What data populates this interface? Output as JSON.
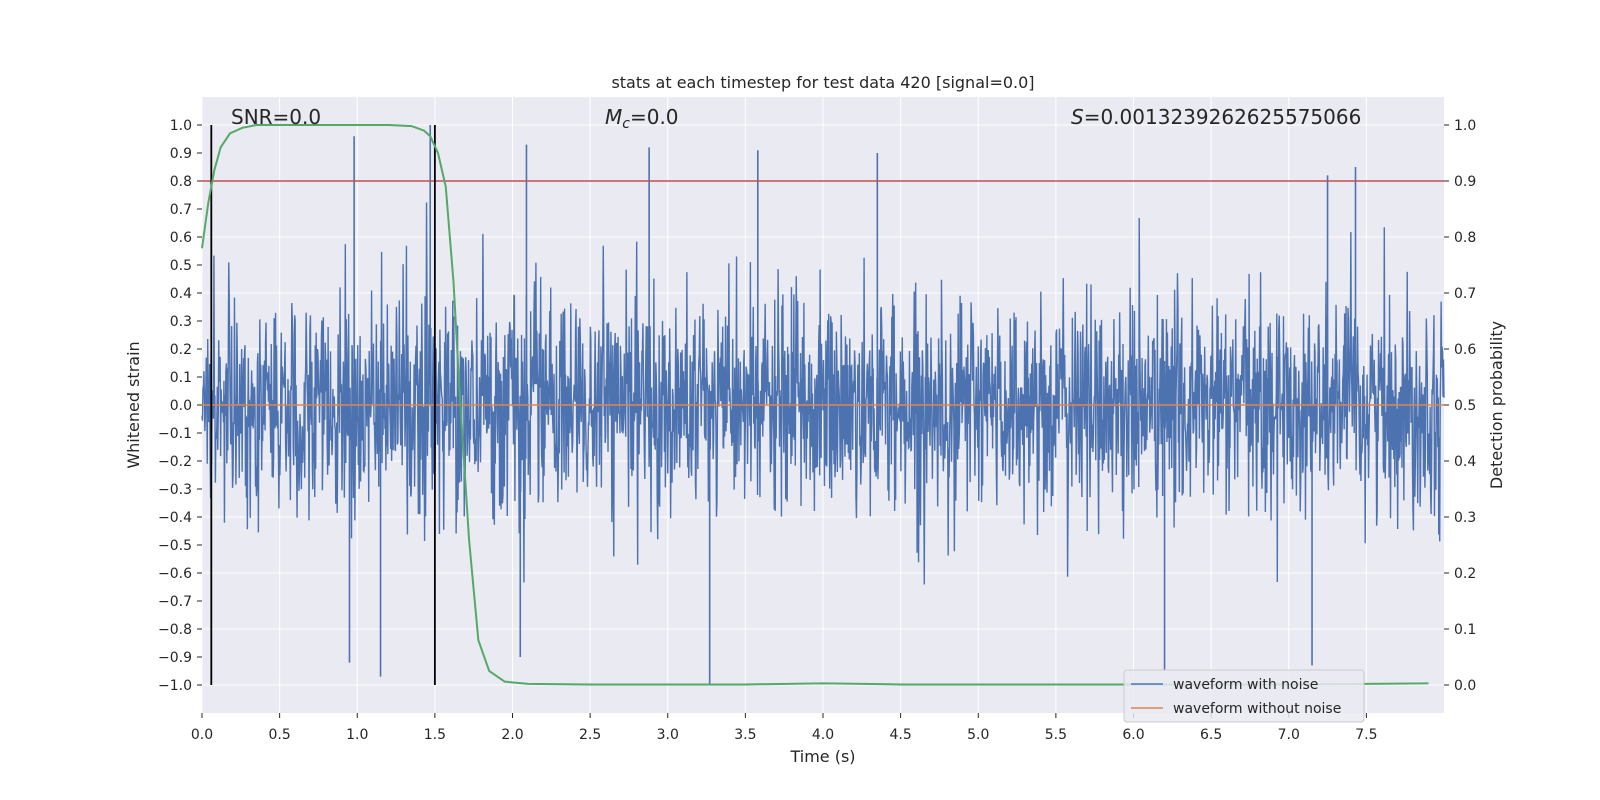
{
  "chart_data": {
    "type": "line",
    "title": "stats at each timestep for test data 420 [signal=0.0]",
    "xlabel": "Time (s)",
    "ylabel_left": "Whitened strain",
    "ylabel_right": "Detection probability",
    "xlim": [
      0.0,
      8.0
    ],
    "ylim_left": [
      -1.1,
      1.1
    ],
    "ylim_right": [
      -0.05,
      1.05
    ],
    "xticks": [
      0.0,
      0.5,
      1.0,
      1.5,
      2.0,
      2.5,
      3.0,
      3.5,
      4.0,
      4.5,
      5.0,
      5.5,
      6.0,
      6.5,
      7.0,
      7.5
    ],
    "xtick_labels": [
      "0.0",
      "0.5",
      "1.0",
      "1.5",
      "2.0",
      "2.5",
      "3.0",
      "3.5",
      "4.0",
      "4.5",
      "5.0",
      "5.5",
      "6.0",
      "6.5",
      "7.0",
      "7.5"
    ],
    "yticks_left": [
      -1.0,
      -0.9,
      -0.8,
      -0.7,
      -0.6,
      -0.5,
      -0.4,
      -0.3,
      -0.2,
      -0.1,
      0.0,
      0.1,
      0.2,
      0.3,
      0.4,
      0.5,
      0.6,
      0.7,
      0.8,
      0.9,
      1.0
    ],
    "ytick_labels_left": [
      "−1.0",
      "−0.9",
      "−0.8",
      "−0.7",
      "−0.6",
      "−0.5",
      "−0.4",
      "−0.3",
      "−0.2",
      "−0.1",
      "0.0",
      "0.1",
      "0.2",
      "0.3",
      "0.4",
      "0.5",
      "0.6",
      "0.7",
      "0.8",
      "0.9",
      "1.0"
    ],
    "yticks_right": [
      0.0,
      0.1,
      0.2,
      0.3,
      0.4,
      0.5,
      0.6,
      0.7,
      0.8,
      0.9,
      1.0
    ],
    "ytick_labels_right": [
      "0.0",
      "0.1",
      "0.2",
      "0.3",
      "0.4",
      "0.5",
      "0.6",
      "0.7",
      "0.8",
      "0.9",
      "1.0"
    ],
    "annotations": {
      "snr": "SNR=0.0",
      "mc_symbol": "M",
      "mc_subscript": "c",
      "mc_value": "=0.0",
      "s_symbol": "S",
      "s_value": "=0.0013239262625575066"
    },
    "series": [
      {
        "name": "waveform with noise",
        "color": "#4c72b0",
        "axis": "left",
        "description": "dense whitened noise, bulk within about ±0.4, spikes up to about ±1.0",
        "peaks": [
          {
            "x": 0.98,
            "y": 0.96
          },
          {
            "x": 1.47,
            "y": 1.0
          },
          {
            "x": 2.09,
            "y": 0.93
          },
          {
            "x": 2.88,
            "y": 0.92
          },
          {
            "x": 3.58,
            "y": 0.91
          },
          {
            "x": 4.35,
            "y": 0.9
          },
          {
            "x": 7.43,
            "y": 0.85
          },
          {
            "x": 7.25,
            "y": 0.82
          },
          {
            "x": 1.15,
            "y": -0.97
          },
          {
            "x": 3.27,
            "y": -1.0
          },
          {
            "x": 6.2,
            "y": -0.95
          },
          {
            "x": 7.15,
            "y": -0.93
          },
          {
            "x": 0.95,
            "y": -0.92
          },
          {
            "x": 2.05,
            "y": -0.9
          }
        ]
      },
      {
        "name": "waveform without noise",
        "color": "#dd8452",
        "axis": "left",
        "values": "flat at 0.0"
      },
      {
        "name": "detection probability",
        "color": "#55a868",
        "axis": "right",
        "x": [
          0.0,
          0.04,
          0.08,
          0.12,
          0.18,
          0.26,
          0.35,
          0.5,
          0.8,
          1.0,
          1.2,
          1.35,
          1.43,
          1.47,
          1.52,
          1.57,
          1.62,
          1.66,
          1.72,
          1.78,
          1.85,
          1.95,
          2.1,
          2.5,
          3.0,
          3.5,
          4.0,
          4.5,
          5.0,
          6.0,
          7.0,
          7.9
        ],
        "y": [
          0.78,
          0.86,
          0.92,
          0.96,
          0.985,
          0.995,
          1.0,
          1.0,
          1.0,
          1.0,
          1.0,
          0.998,
          0.99,
          0.98,
          0.95,
          0.89,
          0.72,
          0.52,
          0.26,
          0.08,
          0.025,
          0.006,
          0.002,
          0.001,
          0.001,
          0.001,
          0.003,
          0.001,
          0.001,
          0.001,
          0.001,
          0.003
        ]
      }
    ],
    "threshold_line": {
      "axis": "right",
      "value": 0.9,
      "color": "#c44e52"
    },
    "vertical_lines": [
      {
        "x": 0.06,
        "y_from": -1.0,
        "y_to": 1.0,
        "color": "#000000"
      },
      {
        "x": 1.5,
        "y_from": -1.0,
        "y_to": 1.0,
        "color": "#000000"
      }
    ],
    "legend": {
      "position": "lower-right",
      "entries": [
        {
          "label": "waveform with noise",
          "color": "#4c72b0"
        },
        {
          "label": "waveform without noise",
          "color": "#dd8452"
        }
      ]
    },
    "grid": true,
    "background": "#eaeaf2"
  }
}
